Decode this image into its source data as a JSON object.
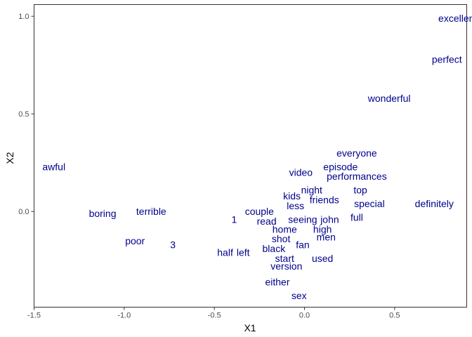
{
  "chart_data": {
    "type": "scatter",
    "mark": "text",
    "xlabel": "X1",
    "ylabel": "X2",
    "xlim": [
      -1.5,
      0.9
    ],
    "ylim": [
      -0.49,
      1.06
    ],
    "x_ticks": [
      -1.5,
      -1.0,
      -0.5,
      0.0,
      0.5
    ],
    "x_tick_labels": [
      "-1.5",
      "-1.0",
      "-0.5",
      "0.0",
      "0.5"
    ],
    "y_ticks": [
      0.0,
      0.5,
      1.0
    ],
    "y_tick_labels": [
      "0.0",
      "0.5",
      "1.0"
    ],
    "grid": false,
    "text_color": "#00008B",
    "points": [
      {
        "label": "excellent",
        "x": 0.85,
        "y": 0.99
      },
      {
        "label": "perfect",
        "x": 0.79,
        "y": 0.78
      },
      {
        "label": "wonderful",
        "x": 0.47,
        "y": 0.58
      },
      {
        "label": "everyone",
        "x": 0.29,
        "y": 0.3
      },
      {
        "label": "awful",
        "x": -1.39,
        "y": 0.23
      },
      {
        "label": "video",
        "x": -0.02,
        "y": 0.2
      },
      {
        "label": "episode",
        "x": 0.2,
        "y": 0.23
      },
      {
        "label": "performances",
        "x": 0.29,
        "y": 0.18
      },
      {
        "label": "kids",
        "x": -0.07,
        "y": 0.08
      },
      {
        "label": "night",
        "x": 0.04,
        "y": 0.11
      },
      {
        "label": "top",
        "x": 0.31,
        "y": 0.11
      },
      {
        "label": "friends",
        "x": 0.11,
        "y": 0.06
      },
      {
        "label": "less",
        "x": -0.05,
        "y": 0.03
      },
      {
        "label": "special",
        "x": 0.36,
        "y": 0.04
      },
      {
        "label": "definitely",
        "x": 0.72,
        "y": 0.04
      },
      {
        "label": "boring",
        "x": -1.12,
        "y": -0.01
      },
      {
        "label": "terrible",
        "x": -0.85,
        "y": 0.0
      },
      {
        "label": "couple",
        "x": -0.25,
        "y": 0.0
      },
      {
        "label": "1",
        "x": -0.39,
        "y": -0.04
      },
      {
        "label": "read",
        "x": -0.21,
        "y": -0.05
      },
      {
        "label": "seeing",
        "x": -0.01,
        "y": -0.04
      },
      {
        "label": "john",
        "x": 0.14,
        "y": -0.04
      },
      {
        "label": "full",
        "x": 0.29,
        "y": -0.03
      },
      {
        "label": "home",
        "x": -0.11,
        "y": -0.09
      },
      {
        "label": "high",
        "x": 0.1,
        "y": -0.09
      },
      {
        "label": "shot",
        "x": -0.13,
        "y": -0.14
      },
      {
        "label": "men",
        "x": 0.12,
        "y": -0.13
      },
      {
        "label": "poor",
        "x": -0.94,
        "y": -0.15
      },
      {
        "label": "3",
        "x": -0.73,
        "y": -0.17
      },
      {
        "label": "fan",
        "x": -0.01,
        "y": -0.17
      },
      {
        "label": "black",
        "x": -0.17,
        "y": -0.19
      },
      {
        "label": "half",
        "x": -0.44,
        "y": -0.21
      },
      {
        "label": "left",
        "x": -0.34,
        "y": -0.21
      },
      {
        "label": "start",
        "x": -0.11,
        "y": -0.24
      },
      {
        "label": "used",
        "x": 0.1,
        "y": -0.24
      },
      {
        "label": "version",
        "x": -0.1,
        "y": -0.28
      },
      {
        "label": "either",
        "x": -0.15,
        "y": -0.36
      },
      {
        "label": "sex",
        "x": -0.03,
        "y": -0.43
      }
    ]
  }
}
